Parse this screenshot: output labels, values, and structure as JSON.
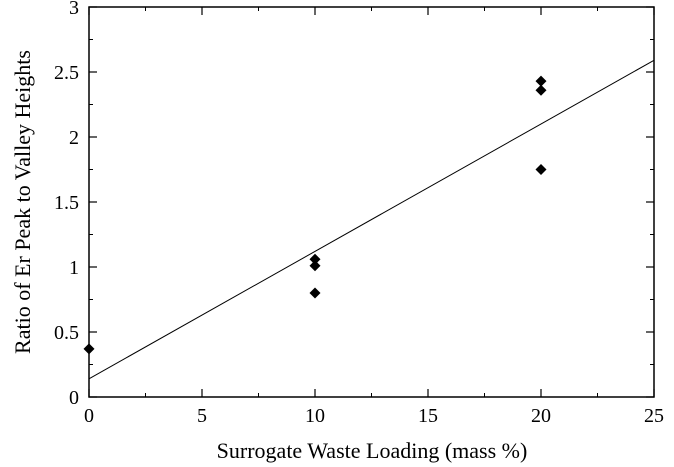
{
  "chart_data": {
    "type": "scatter",
    "title": "",
    "xlabel": "Surrogate Waste Loading (mass %)",
    "ylabel": "Ratio of Er Peak to Valley Heights",
    "xlim": [
      0,
      25
    ],
    "ylim": [
      0,
      3
    ],
    "x_ticks": [
      "0",
      "5",
      "10",
      "15",
      "20",
      "25"
    ],
    "y_ticks": [
      "0",
      "0.5",
      "1",
      "1.5",
      "2",
      "2.5",
      "3"
    ],
    "grid": false,
    "legend": "none",
    "series": [
      {
        "marker": "diamond",
        "color": "#000000",
        "points": [
          {
            "x": 0,
            "y": 0.37
          },
          {
            "x": 10,
            "y": 1.06
          },
          {
            "x": 10,
            "y": 1.01
          },
          {
            "x": 10,
            "y": 0.8
          },
          {
            "x": 20,
            "y": 2.43
          },
          {
            "x": 20,
            "y": 2.36
          },
          {
            "x": 20,
            "y": 1.75
          }
        ]
      }
    ],
    "trendline": {
      "x": [
        0,
        25
      ],
      "y": [
        0.14,
        2.59
      ]
    }
  }
}
